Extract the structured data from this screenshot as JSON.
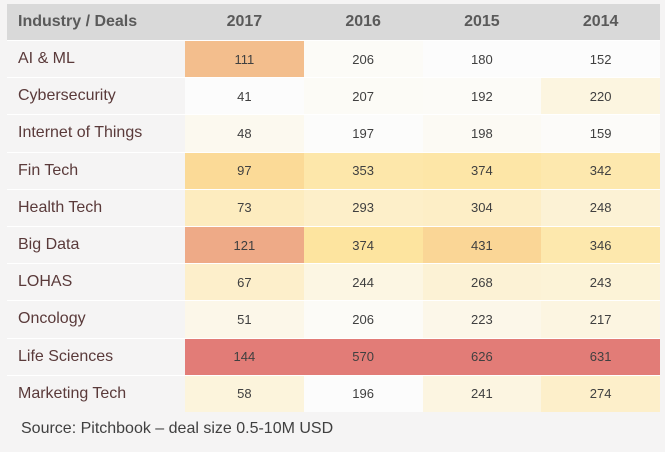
{
  "chart_data": {
    "type": "heatmap",
    "header": "Industry / Deals",
    "columns": [
      "2017",
      "2016",
      "2015",
      "2014"
    ],
    "rows": [
      {
        "label": "AI & ML",
        "values": [
          111,
          206,
          180,
          152
        ]
      },
      {
        "label": "Cybersecurity",
        "values": [
          41,
          207,
          192,
          220
        ]
      },
      {
        "label": "Internet of Things",
        "values": [
          48,
          197,
          198,
          159
        ]
      },
      {
        "label": "Fin Tech",
        "values": [
          97,
          353,
          374,
          342
        ]
      },
      {
        "label": "Health Tech",
        "values": [
          73,
          293,
          304,
          248
        ]
      },
      {
        "label": "Big Data",
        "values": [
          121,
          374,
          431,
          346
        ]
      },
      {
        "label": "LOHAS",
        "values": [
          67,
          244,
          268,
          243
        ]
      },
      {
        "label": "Oncology",
        "values": [
          51,
          206,
          223,
          217
        ]
      },
      {
        "label": "Life Sciences",
        "values": [
          144,
          570,
          626,
          631
        ]
      },
      {
        "label": "Marketing Tech",
        "values": [
          58,
          196,
          241,
          274
        ]
      }
    ]
  },
  "colors": {
    "low": "#fcfcfc",
    "mid": "#fde39a",
    "high": "#e27c77",
    "header_bg": "#d9d9d9"
  },
  "source": "Source: Pitchbook – deal size 0.5-10M USD"
}
